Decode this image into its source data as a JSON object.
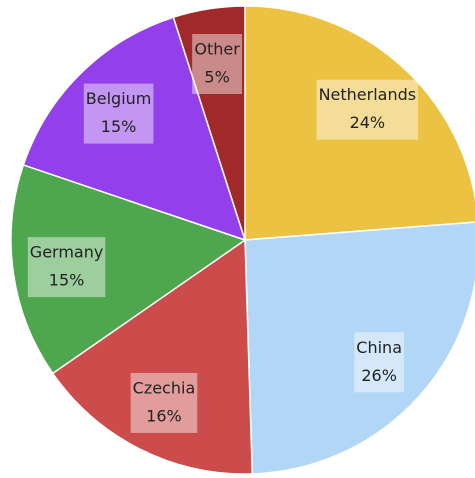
{
  "chart_data": {
    "type": "pie",
    "categories": [
      "Netherlands",
      "China",
      "Czechia",
      "Germany",
      "Belgium",
      "Other"
    ],
    "values": [
      24,
      26,
      16,
      15,
      15,
      5
    ],
    "value_labels": [
      "24%",
      "26%",
      "16%",
      "15%",
      "15%",
      "5%"
    ],
    "colors": [
      "#ecc243",
      "#b1d6f6",
      "#cc4b4b",
      "#4ea64e",
      "#9340ec",
      "#a02a2a"
    ]
  }
}
